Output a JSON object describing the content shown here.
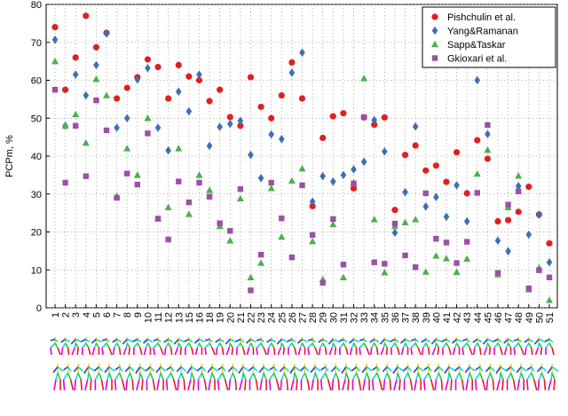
{
  "chart_data": {
    "type": "scatter",
    "y_label": "PCPm, %",
    "categories": [
      "1",
      "2",
      "3",
      "4",
      "5",
      "6",
      "7",
      "8",
      "9",
      "10",
      "11",
      "12",
      "13",
      "15",
      "16",
      "18",
      "19",
      "20",
      "21",
      "22",
      "23",
      "24",
      "25",
      "26",
      "27",
      "28",
      "29",
      "30",
      "31",
      "32",
      "33",
      "34",
      "35",
      "36",
      "37",
      "38",
      "39",
      "40",
      "41",
      "42",
      "43",
      "44",
      "45",
      "46",
      "47",
      "48",
      "49",
      "50",
      "51"
    ],
    "ylim": [
      0,
      80
    ],
    "yticks": [
      0,
      10,
      20,
      30,
      40,
      50,
      60,
      70,
      80
    ],
    "grid": true,
    "legend": "upper right",
    "series": [
      {
        "name": "Pishchulin et al.",
        "color": "#e02020",
        "marker": "circle",
        "values": [
          74,
          57.5,
          66,
          77,
          68.7,
          72.5,
          55.2,
          58,
          60.8,
          65.5,
          63.5,
          55.2,
          64,
          61,
          60,
          54.5,
          57.5,
          50.3,
          48,
          60.8,
          53,
          50,
          56,
          64.7,
          55.2,
          26.8,
          44.8,
          50.5,
          51.3,
          31.5,
          50.2,
          48.3,
          50.2,
          25.8,
          40.3,
          42.8,
          36.2,
          37.5,
          33.2,
          41,
          30.2,
          44.2,
          39.3,
          22.8,
          23.1,
          25.3,
          31.9,
          24.6,
          17
        ]
      },
      {
        "name": "Yang&Ramanan",
        "color": "#3d6fb6",
        "marker": "diamond",
        "values": [
          70.7,
          48,
          61.5,
          56,
          64,
          72.3,
          47.5,
          50,
          60.2,
          63.2,
          47.5,
          41.5,
          57,
          51.8,
          61.5,
          42.7,
          47.7,
          48.5,
          49.3,
          40.3,
          34.2,
          45.7,
          44.5,
          62,
          67.3,
          28,
          34.7,
          33.3,
          35,
          36.5,
          38.5,
          49.5,
          41.2,
          19.8,
          30.5,
          47.8,
          26.7,
          29.2,
          24,
          32.3,
          22.8,
          60,
          45.8,
          17.7,
          14.9,
          32.1,
          19.3,
          24.5,
          12
        ]
      },
      {
        "name": "Sapp&Taskar",
        "color": "#4caf50",
        "marker": "triangle",
        "values": [
          65,
          48,
          51,
          43.5,
          60.3,
          56,
          29.5,
          42,
          35,
          50,
          23.5,
          26.5,
          42,
          24.7,
          35,
          31,
          21.5,
          17.7,
          28.8,
          8,
          11.8,
          31.5,
          18.7,
          33.5,
          36.7,
          17.5,
          7.5,
          22,
          8,
          33,
          60.5,
          23.3,
          9.3,
          21.5,
          22.5,
          23.3,
          9.5,
          13.7,
          13,
          9.4,
          12.9,
          35.3,
          41.6,
          8.8,
          26.5,
          34.8,
          4.8,
          10.6,
          2
        ]
      },
      {
        "name": "Gkioxari et al.",
        "color": "#9b4fa8",
        "marker": "square",
        "values": [
          57.5,
          33,
          48,
          34.7,
          54.7,
          46.8,
          29,
          35.4,
          32.5,
          46,
          23.5,
          18,
          33.3,
          27.8,
          33,
          29.3,
          22.3,
          20.3,
          31.3,
          4.6,
          14,
          33,
          23.6,
          13.3,
          32.3,
          19.2,
          6.6,
          23.4,
          11.4,
          32.8,
          50.3,
          12,
          11.6,
          22.2,
          13.8,
          10.7,
          30.2,
          18.2,
          17.2,
          11.8,
          17.4,
          30.3,
          48.2,
          9.2,
          27.2,
          30.7,
          5.1,
          9.9,
          8
        ]
      }
    ]
  }
}
